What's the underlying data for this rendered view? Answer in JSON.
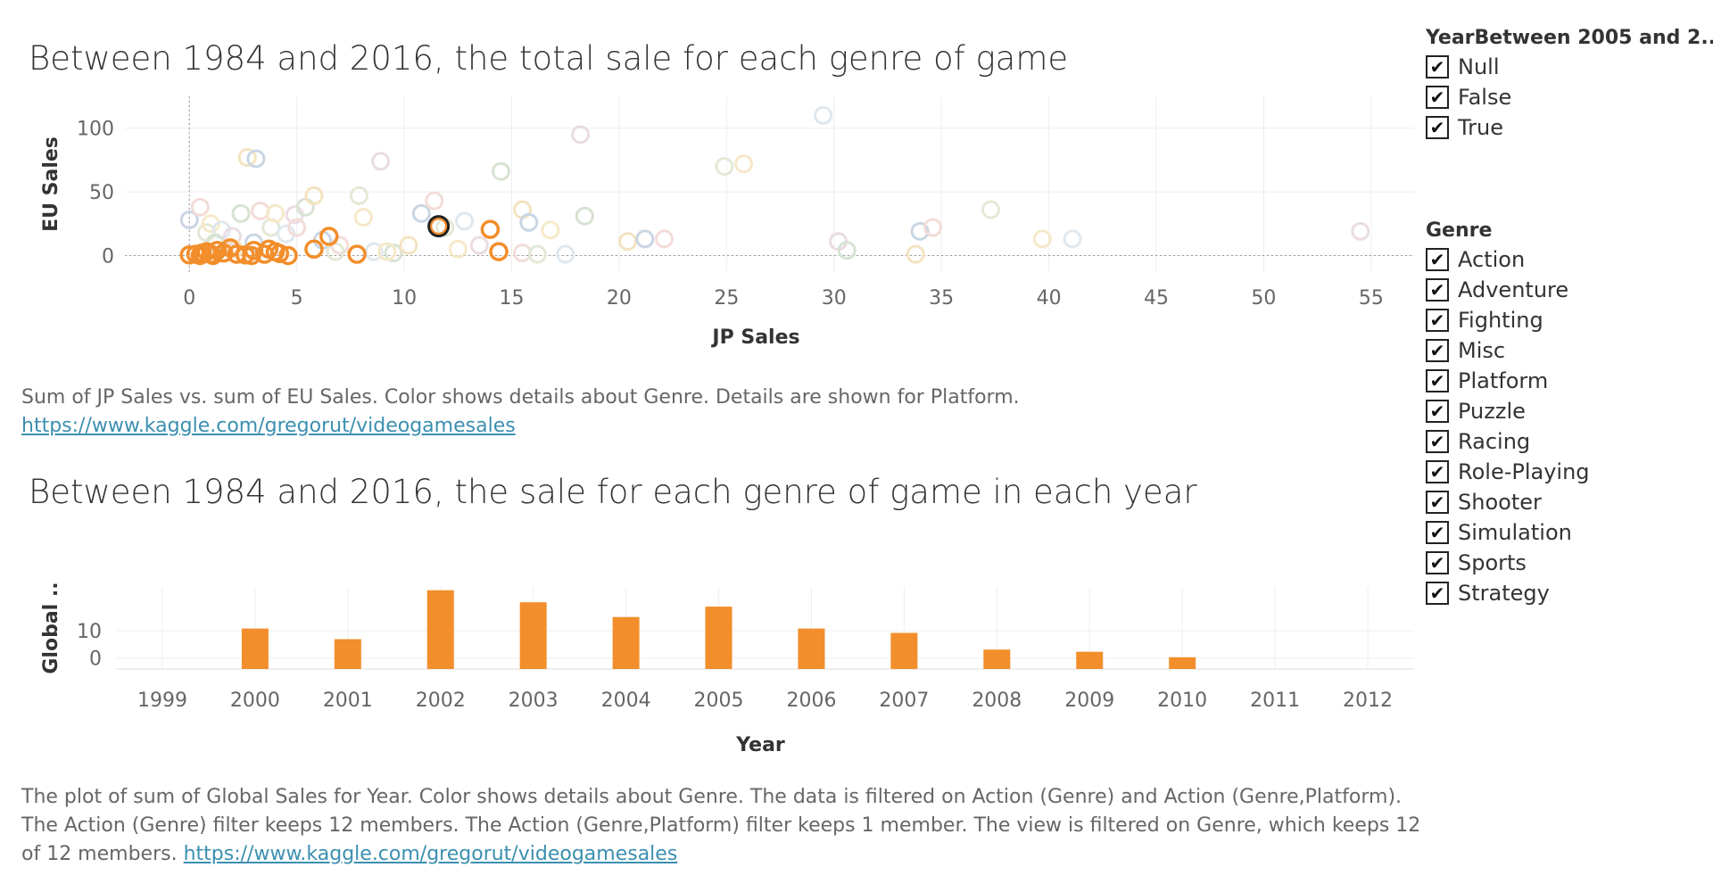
{
  "charts": {
    "scatter": {
      "title": "Between 1984 and 2016, the total sale for each genre of game"
    },
    "bars": {
      "title": "Between 1984 and 2016, the sale for each genre of game in each year"
    }
  },
  "captions": {
    "scatter": {
      "text": "Sum of JP Sales vs. sum of EU Sales.  Color shows details about Genre.  Details are shown for Platform.",
      "link": "https://www.kaggle.com/gregorut/videogamesales"
    },
    "bars": {
      "text": "The plot of sum of Global Sales for Year.  Color shows details about Genre. The data is filtered on Action (Genre) and Action (Genre,Platform). The Action (Genre) filter keeps 12 members. The Action (Genre,Platform) filter keeps 1 member. The view is filtered on Genre, which keeps 12 of 12 members.",
      "link": "https://www.kaggle.com/gregorut/videogamesales"
    }
  },
  "filters": {
    "year": {
      "title": "YearBetween 2005 and 2..",
      "items": [
        {
          "label": "Null",
          "checked": true
        },
        {
          "label": "False",
          "checked": true
        },
        {
          "label": "True",
          "checked": true
        }
      ]
    },
    "genre": {
      "title": "Genre",
      "items": [
        {
          "label": "Action",
          "checked": true
        },
        {
          "label": "Adventure",
          "checked": true
        },
        {
          "label": "Fighting",
          "checked": true
        },
        {
          "label": "Misc",
          "checked": true
        },
        {
          "label": "Platform",
          "checked": true
        },
        {
          "label": "Puzzle",
          "checked": true
        },
        {
          "label": "Racing",
          "checked": true
        },
        {
          "label": "Role-Playing",
          "checked": true
        },
        {
          "label": "Shooter",
          "checked": true
        },
        {
          "label": "Simulation",
          "checked": true
        },
        {
          "label": "Sports",
          "checked": true
        },
        {
          "label": "Strategy",
          "checked": true
        }
      ]
    }
  },
  "colors": {
    "action": "#f28e2b",
    "selected_outline": "#222222",
    "gridline": "#eeeeee",
    "faded_palette": [
      "#c9d6e3",
      "#f3dcd8",
      "#e2e9d6",
      "#f6e9c9",
      "#dfe8ee",
      "#eadbe4",
      "#d7e3d2",
      "#f4e3c0"
    ]
  },
  "chart_data": [
    {
      "type": "scatter",
      "title": "Between 1984 and 2016, the total sale for each genre of game",
      "xlabel": "JP Sales",
      "ylabel": "EU Sales",
      "xlim": [
        -3,
        57
      ],
      "ylim": [
        -13,
        125
      ],
      "xticks": [
        0,
        5,
        10,
        15,
        20,
        25,
        30,
        35,
        40,
        45,
        50,
        55
      ],
      "yticks": [
        0,
        50,
        100
      ],
      "highlighted_series": {
        "name": "Action",
        "points": [
          [
            0.0,
            0.5
          ],
          [
            0.3,
            1.0
          ],
          [
            0.6,
            2.0
          ],
          [
            0.8,
            3.0
          ],
          [
            1.0,
            1.0
          ],
          [
            1.3,
            4.0
          ],
          [
            1.6,
            2.0
          ],
          [
            1.9,
            6.0
          ],
          [
            2.2,
            1.0
          ],
          [
            2.6,
            0.5
          ],
          [
            3.0,
            4.0
          ],
          [
            3.5,
            1.0
          ],
          [
            4.0,
            3.0
          ],
          [
            4.2,
            1.5
          ],
          [
            5.8,
            5.0
          ],
          [
            6.5,
            15.0
          ],
          [
            7.8,
            1.0
          ],
          [
            11.6,
            23.0
          ],
          [
            14.0,
            20.5
          ],
          [
            14.4,
            3.0
          ],
          [
            0.5,
            0.0
          ],
          [
            1.1,
            0.0
          ],
          [
            2.9,
            0.0
          ],
          [
            3.7,
            5.0
          ],
          [
            4.6,
            0.0
          ]
        ],
        "selected_point": [
          11.6,
          23.0
        ]
      },
      "other_points": [
        [
          0.0,
          28
        ],
        [
          0.5,
          38
        ],
        [
          0.8,
          18
        ],
        [
          1.0,
          25
        ],
        [
          1.5,
          20
        ],
        [
          2.0,
          15
        ],
        [
          2.4,
          33
        ],
        [
          2.7,
          77
        ],
        [
          3.1,
          76
        ],
        [
          3.3,
          35
        ],
        [
          3.8,
          22
        ],
        [
          4.0,
          33
        ],
        [
          4.5,
          17
        ],
        [
          4.9,
          32
        ],
        [
          5.4,
          38
        ],
        [
          5.8,
          47
        ],
        [
          6.2,
          12
        ],
        [
          7.0,
          8
        ],
        [
          7.9,
          47
        ],
        [
          8.1,
          30
        ],
        [
          8.6,
          3
        ],
        [
          8.9,
          74
        ],
        [
          9.5,
          2
        ],
        [
          10.2,
          8
        ],
        [
          10.8,
          33
        ],
        [
          11.4,
          43
        ],
        [
          11.9,
          22
        ],
        [
          12.5,
          5
        ],
        [
          12.8,
          27
        ],
        [
          13.5,
          8
        ],
        [
          14.5,
          66
        ],
        [
          15.5,
          36
        ],
        [
          15.8,
          26
        ],
        [
          15.5,
          2
        ],
        [
          16.2,
          1
        ],
        [
          16.8,
          20
        ],
        [
          17.5,
          1
        ],
        [
          18.2,
          95
        ],
        [
          18.4,
          31
        ],
        [
          20.4,
          11
        ],
        [
          21.2,
          13
        ],
        [
          22.1,
          13
        ],
        [
          24.9,
          70
        ],
        [
          25.8,
          72
        ],
        [
          29.5,
          110
        ],
        [
          30.2,
          11
        ],
        [
          30.6,
          4
        ],
        [
          33.8,
          1
        ],
        [
          34.0,
          19
        ],
        [
          34.6,
          22
        ],
        [
          37.3,
          36
        ],
        [
          39.7,
          13
        ],
        [
          41.1,
          13
        ],
        [
          54.5,
          19
        ],
        [
          1.2,
          10
        ],
        [
          2.1,
          5
        ],
        [
          3.0,
          10
        ],
        [
          5.0,
          22
        ],
        [
          6.8,
          3
        ],
        [
          9.2,
          3
        ]
      ]
    },
    {
      "type": "bar",
      "title": "Between 1984 and 2016, the sale for each genre of game in each year",
      "xlabel": "Year",
      "ylabel": "Global ..",
      "categories": [
        "1999",
        "2000",
        "2001",
        "2002",
        "2003",
        "2004",
        "2005",
        "2006",
        "2007",
        "2008",
        "2009",
        "2010",
        "2011",
        "2012"
      ],
      "values": [
        0,
        10.8,
        6.9,
        24.8,
        20.4,
        15.0,
        18.8,
        10.8,
        9.2,
        3.1,
        2.3,
        0.3,
        0,
        0
      ],
      "ylim": [
        -4,
        26
      ],
      "yticks": [
        0,
        10
      ],
      "series": [
        {
          "name": "Action",
          "color": "#f28e2b"
        }
      ]
    }
  ]
}
